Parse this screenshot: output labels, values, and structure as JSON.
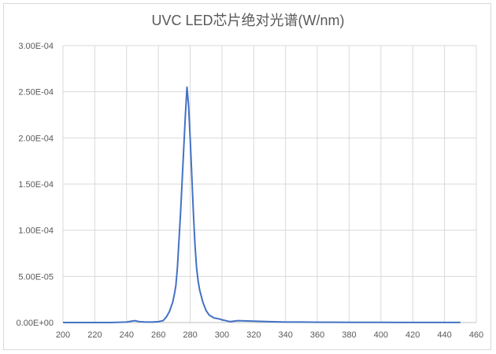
{
  "chart_data": {
    "type": "line",
    "title": "UVC LED芯片绝对光谱(W/nm)",
    "xlabel": "",
    "ylabel": "",
    "xlim": [
      200,
      460
    ],
    "ylim": [
      0,
      0.0003
    ],
    "x_ticks": [
      200,
      220,
      240,
      260,
      280,
      300,
      320,
      340,
      360,
      380,
      400,
      420,
      440,
      460
    ],
    "x_tick_labels": [
      "200",
      "220",
      "240",
      "260",
      "280",
      "300",
      "320",
      "340",
      "360",
      "380",
      "400",
      "420",
      "440",
      "460"
    ],
    "y_ticks": [
      0,
      5e-05,
      0.0001,
      0.00015,
      0.0002,
      0.00025,
      0.0003
    ],
    "y_tick_labels": [
      "0.00E+00",
      "5.00E-05",
      "1.00E-04",
      "1.50E-04",
      "2.00E-04",
      "2.50E-04",
      "3.00E-04"
    ],
    "grid": true,
    "legend": "none",
    "series": [
      {
        "color": "#4472c4",
        "x": [
          200,
          210,
          220,
          230,
          240,
          245,
          248,
          252,
          256,
          260,
          263,
          265,
          267,
          269,
          270,
          271,
          272,
          273,
          274,
          275,
          276,
          277,
          278,
          279,
          280,
          281,
          282,
          283,
          284,
          285,
          286,
          288,
          290,
          292,
          295,
          298,
          300,
          305,
          310,
          320,
          330,
          340,
          350,
          360,
          370,
          380,
          390,
          400,
          410,
          420,
          430,
          440,
          450
        ],
        "y": [
          0,
          0,
          0,
          0,
          5e-07,
          2e-06,
          1e-06,
          5e-07,
          5e-07,
          1e-06,
          2e-06,
          6e-06,
          1.2e-05,
          2.2e-05,
          3e-05,
          4e-05,
          6e-05,
          9e-05,
          0.00012,
          0.000155,
          0.00019,
          0.000225,
          0.000255,
          0.000235,
          0.0002,
          0.00016,
          0.00012,
          8.5e-05,
          6e-05,
          4.5e-05,
          3.5e-05,
          2.2e-05,
          1.3e-05,
          8e-06,
          5e-06,
          4e-06,
          3e-06,
          1e-06,
          2e-06,
          1.5e-06,
          1e-06,
          5e-07,
          5e-07,
          3e-07,
          3e-07,
          2e-07,
          2e-07,
          2e-07,
          1e-07,
          1e-07,
          1e-07,
          1e-07,
          1e-07
        ]
      }
    ]
  }
}
